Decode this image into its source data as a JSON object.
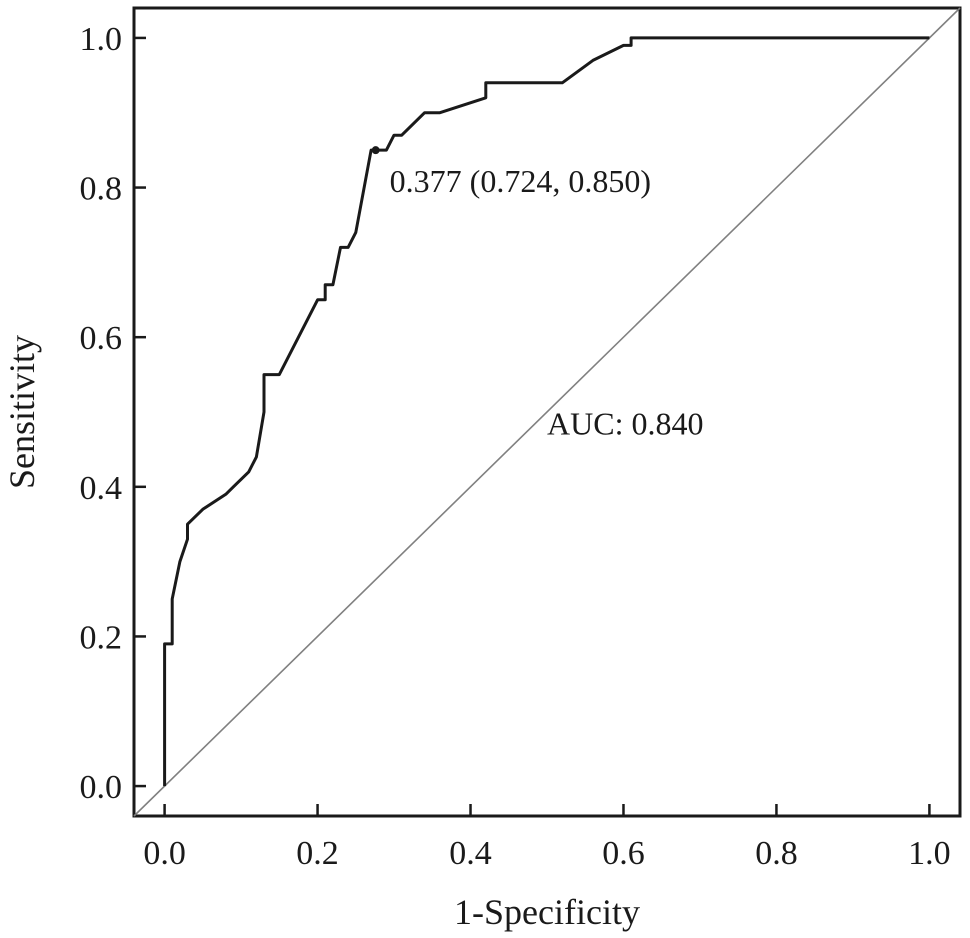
{
  "chart_data": {
    "type": "line",
    "title": "",
    "xlabel": "1-Specificity",
    "ylabel": "Sensitivity",
    "xlim": [
      -0.04,
      1.04
    ],
    "ylim": [
      -0.04,
      1.04
    ],
    "xticks": [
      0.0,
      0.2,
      0.4,
      0.6,
      0.8,
      1.0
    ],
    "yticks": [
      0.0,
      0.2,
      0.4,
      0.6,
      0.8,
      1.0
    ],
    "xtick_labels": [
      "0.0",
      "0.2",
      "0.4",
      "0.6",
      "0.8",
      "1.0"
    ],
    "ytick_labels": [
      "0.0",
      "0.2",
      "0.4",
      "0.6",
      "0.8",
      "1.0"
    ],
    "grid": false,
    "series": [
      {
        "x": [
          0.0,
          0.0,
          0.01,
          0.01,
          0.02,
          0.03,
          0.03,
          0.05,
          0.08,
          0.09,
          0.11,
          0.12,
          0.13,
          0.13,
          0.15,
          0.2,
          0.21,
          0.21,
          0.22,
          0.23,
          0.24,
          0.25,
          0.27,
          0.28,
          0.29,
          0.3,
          0.31,
          0.34,
          0.36,
          0.42,
          0.42,
          0.52,
          0.56,
          0.6,
          0.61,
          0.61,
          1.0
        ],
        "y": [
          0.0,
          0.19,
          0.19,
          0.25,
          0.3,
          0.33,
          0.35,
          0.37,
          0.39,
          0.4,
          0.42,
          0.44,
          0.5,
          0.55,
          0.55,
          0.65,
          0.65,
          0.67,
          0.67,
          0.72,
          0.72,
          0.74,
          0.85,
          0.85,
          0.85,
          0.87,
          0.87,
          0.9,
          0.9,
          0.92,
          0.94,
          0.94,
          0.97,
          0.99,
          0.99,
          1.0,
          1.0
        ]
      }
    ],
    "reference_line": {
      "x": [
        -0.04,
        1.04
      ],
      "y": [
        -0.04,
        1.04
      ]
    },
    "threshold_point": {
      "x": 0.276,
      "y": 0.85,
      "label": "0.377 (0.724, 0.850)"
    },
    "auc_label": "AUC: 0.840"
  }
}
